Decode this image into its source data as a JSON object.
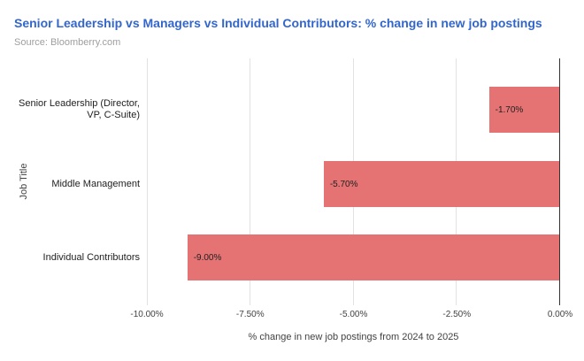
{
  "header": {
    "title": "Senior Leadership vs Managers vs Individual Contributors: % change in new job postings",
    "source": "Source: Bloomberry.com"
  },
  "colors": {
    "title": "#3366cc",
    "bar": "#e57373",
    "gridline": "#e2e2e2",
    "zero_line": "#333333",
    "source_text": "#9e9e9e"
  },
  "chart_data": {
    "type": "bar",
    "orientation": "horizontal",
    "title": "Senior Leadership vs Managers vs Individual Contributors: % change in new job postings",
    "source": "Source: Bloomberry.com",
    "categories": [
      "Senior Leadership (Director, VP, C-Suite)",
      "Middle Management",
      "Individual Contributors"
    ],
    "category_display_lines": [
      [
        "Senior Leadership (Director,",
        "VP, C-Suite)"
      ],
      [
        "Middle Management"
      ],
      [
        "Individual Contributors"
      ]
    ],
    "values": [
      -1.7,
      -5.7,
      -9.0
    ],
    "bar_labels": [
      "-1.70%",
      "-5.70%",
      "-9.00%"
    ],
    "xlabel": "% change in new job postings from 2024 to 2025",
    "ylabel": "Job Title",
    "xlim": [
      -10,
      0
    ],
    "xticks": [
      "-10.00%",
      "-7.50%",
      "-5.00%",
      "-2.50%",
      "0.00%"
    ],
    "xtick_positions_pct": [
      0,
      25,
      50,
      75,
      100
    ],
    "grid": true,
    "legend": "none"
  }
}
